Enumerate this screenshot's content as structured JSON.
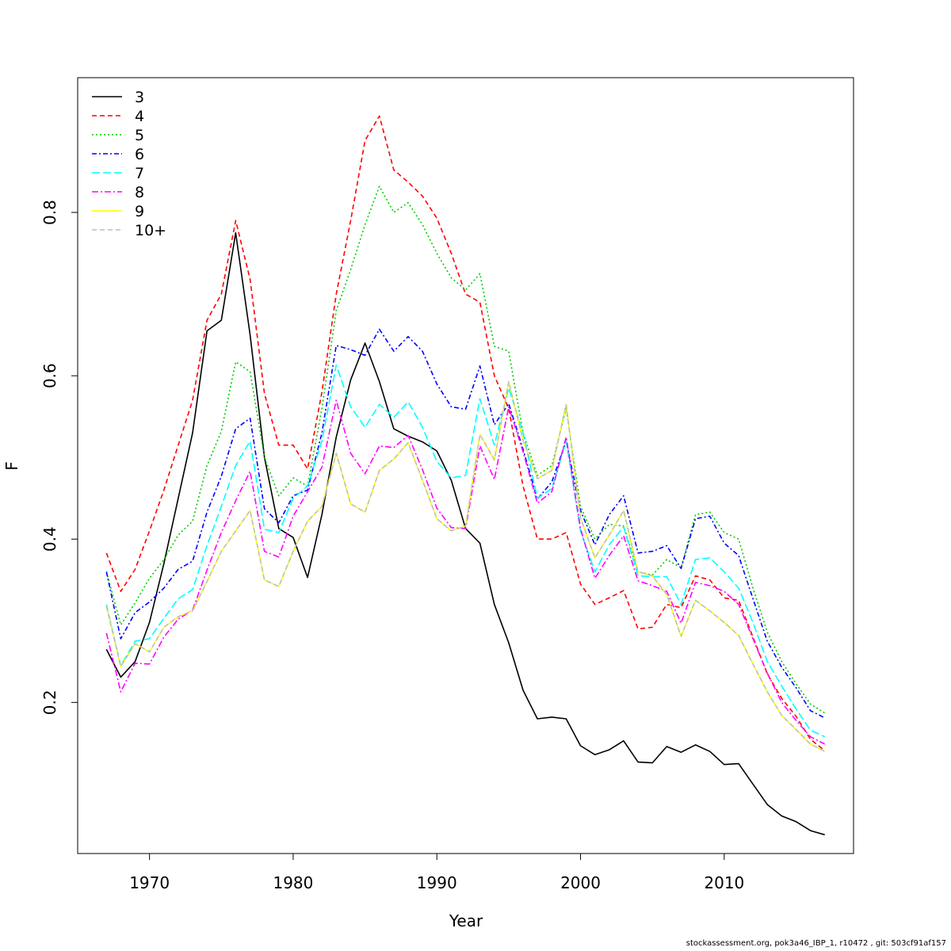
{
  "footer": "stockassessment.org, pok3a46_IBP_1, r10472 , git: 503cf91af157",
  "chart_data": {
    "type": "line",
    "title": "",
    "xlabel": "Year",
    "ylabel": "F",
    "xlim": [
      1965,
      2019
    ],
    "ylim": [
      0.015,
      0.965
    ],
    "xticks": [
      1970,
      1980,
      1990,
      2000,
      2010
    ],
    "yticks": [
      0.2,
      0.4,
      0.6,
      0.8
    ],
    "legend_position": "top-left",
    "x": [
      1967,
      1968,
      1969,
      1970,
      1971,
      1972,
      1973,
      1974,
      1975,
      1976,
      1977,
      1978,
      1979,
      1980,
      1981,
      1982,
      1983,
      1984,
      1985,
      1986,
      1987,
      1988,
      1989,
      1990,
      1991,
      1992,
      1993,
      1994,
      1995,
      1996,
      1997,
      1998,
      1999,
      2000,
      2001,
      2002,
      2003,
      2004,
      2005,
      2006,
      2007,
      2008,
      2009,
      2010,
      2011,
      2012,
      2013,
      2014,
      2015,
      2016,
      2017
    ],
    "series": [
      {
        "name": "3",
        "color": "#000000",
        "dash": "",
        "values": [
          0.265,
          0.231,
          0.25,
          0.298,
          0.37,
          0.45,
          0.53,
          0.655,
          0.668,
          0.775,
          0.65,
          0.5,
          0.413,
          0.402,
          0.353,
          0.43,
          0.525,
          0.595,
          0.64,
          0.593,
          0.535,
          0.526,
          0.519,
          0.508,
          0.472,
          0.413,
          0.395,
          0.32,
          0.273,
          0.215,
          0.18,
          0.182,
          0.18,
          0.147,
          0.136,
          0.142,
          0.153,
          0.127,
          0.126,
          0.146,
          0.139,
          0.148,
          0.14,
          0.124,
          0.125,
          0.1,
          0.075,
          0.061,
          0.054,
          0.043,
          0.038
        ]
      },
      {
        "name": "4",
        "color": "#ff0000",
        "dash": "6,4",
        "values": [
          0.383,
          0.336,
          0.363,
          0.41,
          0.46,
          0.515,
          0.57,
          0.668,
          0.7,
          0.79,
          0.718,
          0.578,
          0.515,
          0.515,
          0.486,
          0.58,
          0.7,
          0.79,
          0.888,
          0.918,
          0.852,
          0.837,
          0.82,
          0.793,
          0.75,
          0.7,
          0.69,
          0.6,
          0.56,
          0.465,
          0.4,
          0.4,
          0.408,
          0.345,
          0.32,
          0.328,
          0.337,
          0.29,
          0.292,
          0.32,
          0.316,
          0.355,
          0.35,
          0.328,
          0.325,
          0.28,
          0.235,
          0.205,
          0.183,
          0.155,
          0.141
        ]
      },
      {
        "name": "5",
        "color": "#00cd00",
        "dash": "2,3",
        "values": [
          0.36,
          0.295,
          0.322,
          0.352,
          0.375,
          0.405,
          0.422,
          0.49,
          0.532,
          0.617,
          0.605,
          0.5,
          0.453,
          0.475,
          0.465,
          0.56,
          0.68,
          0.73,
          0.785,
          0.832,
          0.8,
          0.812,
          0.785,
          0.75,
          0.72,
          0.705,
          0.725,
          0.636,
          0.63,
          0.53,
          0.478,
          0.49,
          0.56,
          0.44,
          0.4,
          0.418,
          0.416,
          0.36,
          0.356,
          0.375,
          0.365,
          0.43,
          0.433,
          0.408,
          0.4,
          0.34,
          0.286,
          0.25,
          0.223,
          0.198,
          0.187
        ]
      },
      {
        "name": "6",
        "color": "#0000ff",
        "dash": "6,3,2,3",
        "values": [
          0.36,
          0.278,
          0.31,
          0.323,
          0.34,
          0.363,
          0.373,
          0.433,
          0.477,
          0.535,
          0.548,
          0.437,
          0.42,
          0.453,
          0.46,
          0.53,
          0.637,
          0.632,
          0.625,
          0.657,
          0.63,
          0.648,
          0.63,
          0.59,
          0.562,
          0.559,
          0.612,
          0.54,
          0.566,
          0.51,
          0.449,
          0.47,
          0.52,
          0.435,
          0.393,
          0.43,
          0.453,
          0.383,
          0.385,
          0.392,
          0.364,
          0.425,
          0.428,
          0.395,
          0.38,
          0.327,
          0.275,
          0.243,
          0.218,
          0.19,
          0.181
        ]
      },
      {
        "name": "7",
        "color": "#00ffff",
        "dash": "10,4",
        "values": [
          0.32,
          0.245,
          0.275,
          0.278,
          0.303,
          0.327,
          0.338,
          0.392,
          0.44,
          0.49,
          0.52,
          0.412,
          0.408,
          0.45,
          0.465,
          0.52,
          0.613,
          0.562,
          0.537,
          0.565,
          0.549,
          0.568,
          0.537,
          0.495,
          0.475,
          0.478,
          0.572,
          0.515,
          0.585,
          0.53,
          0.45,
          0.462,
          0.52,
          0.41,
          0.36,
          0.393,
          0.415,
          0.355,
          0.354,
          0.354,
          0.32,
          0.375,
          0.377,
          0.36,
          0.34,
          0.298,
          0.25,
          0.22,
          0.192,
          0.166,
          0.158
        ]
      },
      {
        "name": "8",
        "color": "#ff00ff",
        "dash": "8,3,2,3",
        "values": [
          0.285,
          0.213,
          0.248,
          0.247,
          0.28,
          0.302,
          0.313,
          0.362,
          0.408,
          0.447,
          0.483,
          0.385,
          0.378,
          0.428,
          0.458,
          0.488,
          0.57,
          0.505,
          0.48,
          0.514,
          0.512,
          0.527,
          0.485,
          0.438,
          0.414,
          0.413,
          0.514,
          0.473,
          0.562,
          0.507,
          0.444,
          0.458,
          0.525,
          0.413,
          0.352,
          0.38,
          0.404,
          0.349,
          0.343,
          0.336,
          0.297,
          0.347,
          0.343,
          0.336,
          0.32,
          0.278,
          0.236,
          0.2,
          0.178,
          0.158,
          0.149
        ]
      },
      {
        "name": "9",
        "color": "#ffff00",
        "dash": "",
        "values": [
          0.318,
          0.244,
          0.272,
          0.262,
          0.292,
          0.305,
          0.312,
          0.348,
          0.385,
          0.41,
          0.435,
          0.35,
          0.342,
          0.385,
          0.422,
          0.44,
          0.505,
          0.443,
          0.433,
          0.484,
          0.498,
          0.518,
          0.472,
          0.425,
          0.41,
          0.416,
          0.528,
          0.497,
          0.593,
          0.521,
          0.474,
          0.484,
          0.565,
          0.426,
          0.377,
          0.405,
          0.435,
          0.36,
          0.355,
          0.332,
          0.281,
          0.325,
          0.312,
          0.298,
          0.282,
          0.247,
          0.213,
          0.184,
          0.167,
          0.149,
          0.14
        ]
      },
      {
        "name": "10+",
        "color": "#bebebe",
        "dash": "6,4",
        "values": [
          0.318,
          0.244,
          0.272,
          0.262,
          0.292,
          0.305,
          0.312,
          0.348,
          0.385,
          0.41,
          0.435,
          0.35,
          0.342,
          0.385,
          0.422,
          0.44,
          0.505,
          0.443,
          0.433,
          0.484,
          0.498,
          0.518,
          0.472,
          0.425,
          0.41,
          0.416,
          0.528,
          0.497,
          0.593,
          0.521,
          0.474,
          0.484,
          0.565,
          0.426,
          0.377,
          0.405,
          0.435,
          0.36,
          0.355,
          0.332,
          0.281,
          0.325,
          0.312,
          0.298,
          0.282,
          0.247,
          0.213,
          0.184,
          0.167,
          0.149,
          0.14
        ]
      }
    ]
  }
}
